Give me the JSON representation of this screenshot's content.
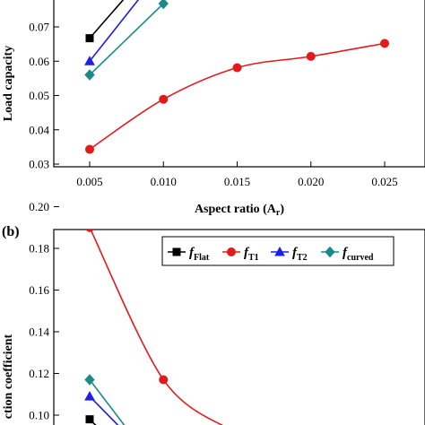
{
  "chart_data": [
    {
      "panel_label": "",
      "type": "line",
      "xlabel": "Aspect ratio (A",
      "xlabel_sub": "r",
      "xlabel_close": ")",
      "ylabel": "Load capacity",
      "xlim": [
        0.0025,
        0.0275
      ],
      "ylim": [
        0.03,
        0.08
      ],
      "xticks": [
        "0.005",
        "0.010",
        "0.015",
        "0.020",
        "0.025"
      ],
      "yticks": [
        "0.03",
        "0.04",
        "0.05",
        "0.06",
        "0.07"
      ],
      "series": [
        {
          "key": "flat",
          "color": "#000000",
          "marker": "square",
          "x": [
            0.005,
            0.0075
          ],
          "y": [
            0.0667,
            0.079
          ]
        },
        {
          "key": "t1",
          "color": "#e31a1c",
          "marker": "circle",
          "x": [
            0.005,
            0.01,
            0.015,
            0.02,
            0.025
          ],
          "y": [
            0.0343,
            0.0489,
            0.0581,
            0.0614,
            0.0652
          ]
        },
        {
          "key": "t2",
          "color": "#1f1fe6",
          "marker": "triangle",
          "x": [
            0.005,
            0.0085
          ],
          "y": [
            0.06,
            0.079
          ]
        },
        {
          "key": "curved",
          "color": "#1a8a8a",
          "marker": "diamond",
          "x": [
            0.005,
            0.01
          ],
          "y": [
            0.056,
            0.0768
          ]
        }
      ]
    },
    {
      "panel_label": "(b)",
      "type": "line",
      "ylabel": "ction coefficient",
      "ylim": [
        0.09,
        0.2
      ],
      "yticks": [
        "0.10",
        "0.12",
        "0.14",
        "0.16",
        "0.18",
        "0.20"
      ],
      "legend": [
        {
          "key": "flat",
          "symbol": "f",
          "sub": "Flat"
        },
        {
          "key": "t1",
          "symbol": "f",
          "sub": "T1"
        },
        {
          "key": "t2",
          "symbol": "f",
          "sub": "T2"
        },
        {
          "key": "curved",
          "symbol": "f",
          "sub": "curved"
        }
      ],
      "series": [
        {
          "key": "flat",
          "color": "#000000",
          "marker": "square",
          "x": [
            0.005,
            0.006
          ],
          "y": [
            0.098,
            0.091
          ]
        },
        {
          "key": "t1",
          "color": "#e31a1c",
          "marker": "circle",
          "x": [
            0.005,
            0.01,
            0.0145
          ],
          "y": [
            0.19,
            0.117,
            0.093
          ]
        },
        {
          "key": "t2",
          "color": "#1f1fe6",
          "marker": "triangle",
          "x": [
            0.005,
            0.0075
          ],
          "y": [
            0.109,
            0.091
          ]
        },
        {
          "key": "curved",
          "color": "#1a8a8a",
          "marker": "diamond",
          "x": [
            0.005,
            0.0078
          ],
          "y": [
            0.117,
            0.091
          ]
        }
      ]
    }
  ]
}
